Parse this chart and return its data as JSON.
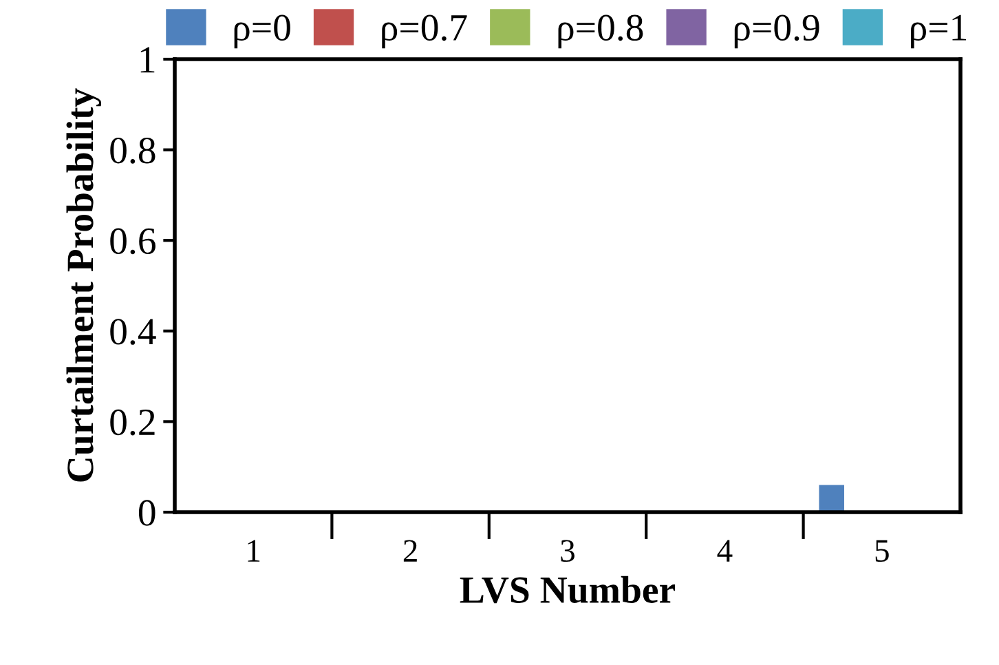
{
  "chart_data": {
    "type": "bar",
    "categories": [
      "1",
      "2",
      "3",
      "4",
      "5"
    ],
    "series": [
      {
        "name": "ρ=0",
        "color": "#4f81bd",
        "values": [
          0,
          0,
          0,
          0,
          0.06
        ]
      },
      {
        "name": "ρ=0.7",
        "color": "#c0504d",
        "values": [
          0,
          0,
          0,
          0,
          0
        ]
      },
      {
        "name": "ρ=0.8",
        "color": "#9bbb59",
        "values": [
          0,
          0,
          0,
          0,
          0
        ]
      },
      {
        "name": "ρ=0.9",
        "color": "#8064a2",
        "values": [
          0,
          0,
          0,
          0,
          0
        ]
      },
      {
        "name": "ρ=1",
        "color": "#4bacc6",
        "values": [
          0,
          0,
          0,
          0,
          0
        ]
      }
    ],
    "xlabel": "LVS Number",
    "ylabel": "Curtailment Probability",
    "ylim": [
      0,
      1
    ],
    "yticks": [
      0,
      0.2,
      0.4,
      0.6,
      0.8,
      1
    ],
    "grid": false,
    "legend": "top"
  }
}
